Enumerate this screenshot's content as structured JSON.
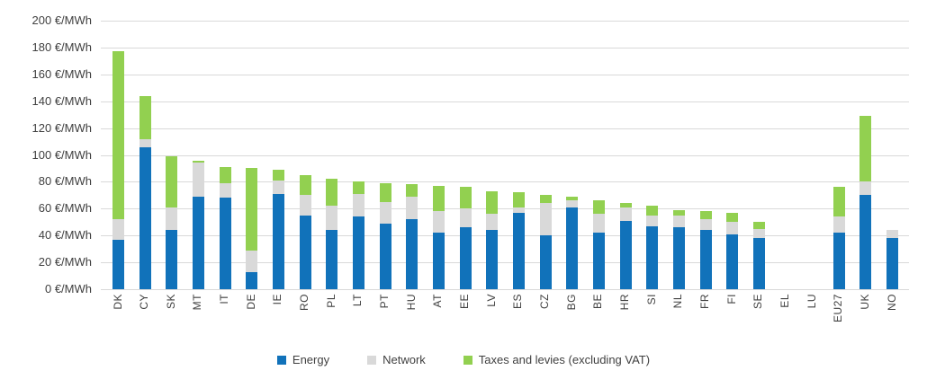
{
  "chart_data": {
    "type": "bar",
    "stacked": true,
    "title": "",
    "unit": "€/MWh",
    "grid": true,
    "legend_position": "bottom",
    "categories": [
      "DK",
      "CY",
      "SK",
      "MT",
      "IT",
      "DE",
      "IE",
      "RO",
      "PL",
      "LT",
      "PT",
      "HU",
      "AT",
      "EE",
      "LV",
      "ES",
      "CZ",
      "BG",
      "BE",
      "HR",
      "SI",
      "NL",
      "FR",
      "FI",
      "SE",
      "EL",
      "LU",
      "EU27",
      "UK",
      "NO"
    ],
    "series": [
      {
        "name": "Energy",
        "color": "#1172ba",
        "values": [
          37,
          106,
          44,
          69,
          68,
          13,
          71,
          55,
          44,
          54,
          49,
          52,
          42,
          46,
          44,
          57,
          40,
          61,
          42,
          51,
          47,
          46,
          44,
          41,
          38,
          0,
          0,
          42,
          70,
          38
        ]
      },
      {
        "name": "Network",
        "color": "#d9d9d9",
        "values": [
          15,
          6,
          17,
          25,
          11,
          16,
          10,
          15,
          18,
          17,
          16,
          17,
          16,
          14,
          12,
          4,
          24,
          5,
          14,
          10,
          8,
          9,
          8,
          9,
          7,
          0,
          0,
          12,
          10,
          6
        ]
      },
      {
        "name": "Taxes and levies (excluding VAT)",
        "color": "#92d050",
        "values": [
          125,
          32,
          38,
          2,
          12,
          61,
          8,
          15,
          20,
          9,
          14,
          9,
          19,
          16,
          17,
          11,
          6,
          3,
          10,
          3,
          7,
          4,
          6,
          7,
          5,
          0,
          0,
          22,
          49,
          0
        ]
      }
    ],
    "y_axis": {
      "min": 0,
      "max": 200,
      "step": 20,
      "ticks": [
        {
          "value": 0,
          "label": "0 €/MWh"
        },
        {
          "value": 20,
          "label": "20 €/MWh"
        },
        {
          "value": 40,
          "label": "40 €/MWh"
        },
        {
          "value": 60,
          "label": "60 €/MWh"
        },
        {
          "value": 80,
          "label": "80 €/MWh"
        },
        {
          "value": 100,
          "label": "100 €/MWh"
        },
        {
          "value": 120,
          "label": "120 €/MWh"
        },
        {
          "value": 140,
          "label": "140 €/MWh"
        },
        {
          "value": 160,
          "label": "160 €/MWh"
        },
        {
          "value": 180,
          "label": "180 €/MWh"
        },
        {
          "value": 200,
          "label": "200 €/MWh"
        }
      ]
    },
    "gridline_color": "#d9d9d9",
    "text_color": "#404040"
  }
}
